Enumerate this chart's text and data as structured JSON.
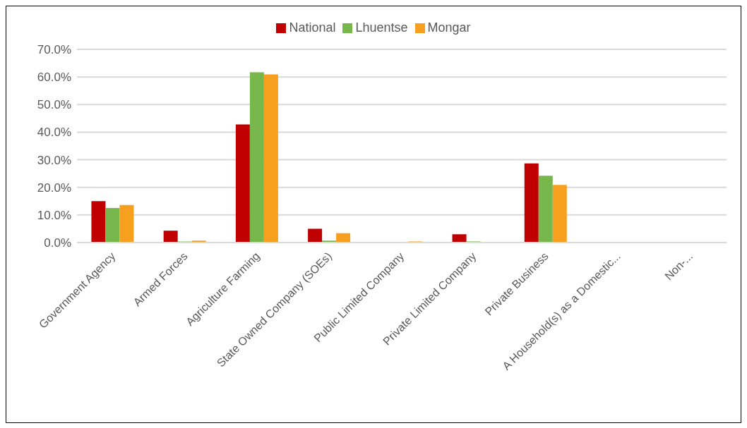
{
  "chart_data": {
    "type": "bar",
    "categories": [
      "Government Agency",
      "Armed Forces",
      "Agriculture Farming",
      "State Owned Company (SOEs)",
      "Public Limited Company",
      "Private Limited Company",
      "Private Business",
      "A Household(s) as a Domestic...",
      "Non-..."
    ],
    "series": [
      {
        "name": "National",
        "color": "#c00000",
        "values": [
          15.0,
          4.3,
          42.8,
          5.0,
          0,
          3.0,
          28.7,
          0,
          0
        ]
      },
      {
        "name": "Lhuentse",
        "color": "#77b74b",
        "values": [
          12.5,
          0.4,
          61.7,
          0.7,
          0,
          0.4,
          24.2,
          0,
          0
        ]
      },
      {
        "name": "Mongar",
        "color": "#f79f1f",
        "values": [
          13.6,
          0.7,
          60.9,
          3.4,
          0.4,
          0,
          20.9,
          0,
          0
        ]
      }
    ],
    "ylim": [
      0,
      70
    ],
    "yticks": [
      {
        "value": 0,
        "label": "0.0%"
      },
      {
        "value": 10,
        "label": "10.0%"
      },
      {
        "value": 20,
        "label": "20.0%"
      },
      {
        "value": 30,
        "label": "30.0%"
      },
      {
        "value": 40,
        "label": "40.0%"
      },
      {
        "value": 50,
        "label": "50.0%"
      },
      {
        "value": 60,
        "label": "60.0%"
      },
      {
        "value": 70,
        "label": "70.0%"
      }
    ],
    "grid": "y",
    "legend": "top"
  }
}
